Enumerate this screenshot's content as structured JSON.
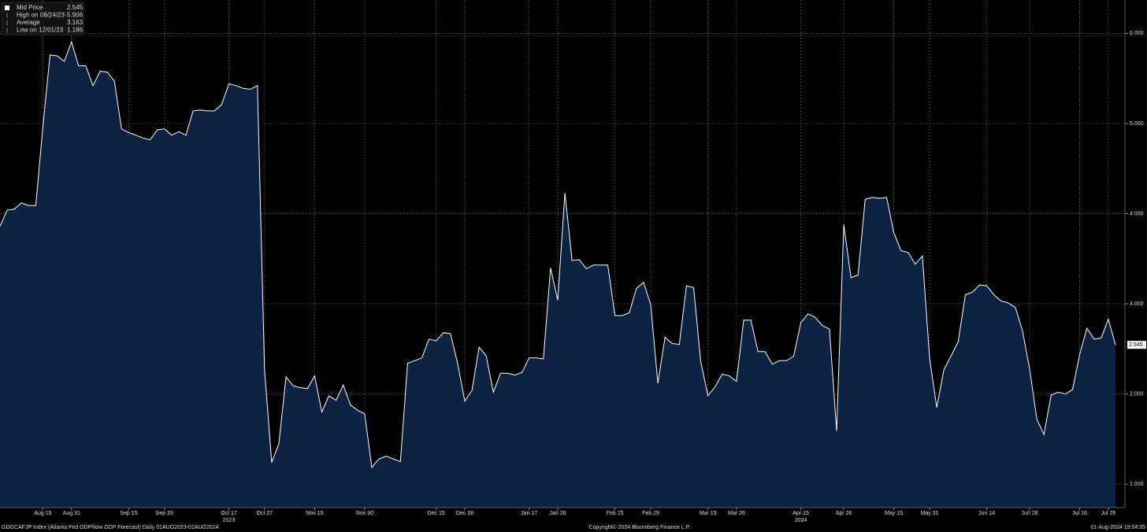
{
  "chart_data": {
    "type": "area",
    "stats": [
      {
        "label": "Mid Price",
        "value": 2.545
      },
      {
        "label": "High on 08/24/23",
        "value": 5.906
      },
      {
        "label": "Average",
        "value": 3.163
      },
      {
        "label": "Low on 12/01/23",
        "value": 1.186
      }
    ],
    "categories": [
      null,
      null,
      null,
      null,
      null,
      null,
      "Aug 15",
      null,
      null,
      null,
      "Aug 31",
      null,
      null,
      null,
      null,
      null,
      null,
      null,
      "Sep 15",
      null,
      null,
      null,
      null,
      "Sep 29",
      null,
      null,
      null,
      null,
      null,
      null,
      null,
      null,
      "Oct 17",
      null,
      null,
      null,
      null,
      "Oct 27",
      null,
      null,
      null,
      null,
      null,
      null,
      "Nov 15",
      null,
      null,
      null,
      null,
      null,
      null,
      "Nov 30",
      null,
      null,
      null,
      null,
      null,
      null,
      null,
      null,
      null,
      "Dec 15",
      null,
      null,
      null,
      "Dec 28",
      null,
      null,
      null,
      null,
      null,
      null,
      null,
      null,
      "Jan 17",
      null,
      null,
      null,
      "Jan 26",
      null,
      null,
      null,
      null,
      null,
      null,
      null,
      "Feb 15",
      null,
      null,
      null,
      null,
      "Feb 29",
      null,
      null,
      null,
      null,
      null,
      null,
      null,
      "Mar 15",
      null,
      null,
      null,
      "Mar 26",
      null,
      null,
      null,
      null,
      null,
      null,
      null,
      null,
      "Apr 15",
      null,
      null,
      null,
      null,
      null,
      "Apr 26",
      null,
      null,
      null,
      null,
      null,
      null,
      "May 15",
      null,
      null,
      null,
      null,
      "May 31",
      null,
      null,
      null,
      null,
      null,
      null,
      null,
      "Jun 14",
      null,
      null,
      null,
      null,
      null,
      "Jun 28",
      null,
      null,
      null,
      null,
      null,
      null,
      "Jul 16",
      null,
      null,
      null,
      "Jul 26",
      null
    ],
    "year_labels": [
      "2023",
      "2024"
    ],
    "series": [
      {
        "name": "Mid Price",
        "color": "#ffffff",
        "fill": "#0b2242",
        "values": [
          3.86,
          4.04,
          4.05,
          4.12,
          4.09,
          4.09,
          4.97,
          5.76,
          5.75,
          5.69,
          5.906,
          5.64,
          5.64,
          5.42,
          5.58,
          5.57,
          5.47,
          4.94,
          4.9,
          4.87,
          4.84,
          4.82,
          4.93,
          4.94,
          4.87,
          4.91,
          4.87,
          5.14,
          5.15,
          5.14,
          5.14,
          5.21,
          5.44,
          5.42,
          5.39,
          5.38,
          5.42,
          2.27,
          1.24,
          1.45,
          2.19,
          2.09,
          2.07,
          2.06,
          2.2,
          1.8,
          1.98,
          1.93,
          2.1,
          1.88,
          1.82,
          1.78,
          1.186,
          1.28,
          1.31,
          1.28,
          1.25,
          2.34,
          2.37,
          2.4,
          2.61,
          2.59,
          2.68,
          2.67,
          2.34,
          1.92,
          2.04,
          2.52,
          2.42,
          2.02,
          2.23,
          2.23,
          2.21,
          2.24,
          2.4,
          2.4,
          2.39,
          3.4,
          3.04,
          4.23,
          3.48,
          3.49,
          3.39,
          3.43,
          3.43,
          3.43,
          2.87,
          2.87,
          2.9,
          3.17,
          3.24,
          2.99,
          2.12,
          2.63,
          2.56,
          2.55,
          3.2,
          3.18,
          2.36,
          1.98,
          2.08,
          2.22,
          2.2,
          2.14,
          2.82,
          2.82,
          2.47,
          2.47,
          2.33,
          2.37,
          2.37,
          2.42,
          2.79,
          2.89,
          2.85,
          2.76,
          2.72,
          1.59,
          3.88,
          3.29,
          3.32,
          4.16,
          4.18,
          4.17,
          4.18,
          3.79,
          3.59,
          3.57,
          3.44,
          3.53,
          2.4,
          1.85,
          2.27,
          2.42,
          2.58,
          3.1,
          3.13,
          3.21,
          3.2,
          3.1,
          3.03,
          3.01,
          2.96,
          2.7,
          2.27,
          1.72,
          1.55,
          1.99,
          2.02,
          2.0,
          2.05,
          2.44,
          2.73,
          2.61,
          2.62,
          2.83,
          2.545
        ]
      }
    ],
    "ylim": [
      0.74,
      6.37
    ],
    "yticks": [
      {
        "value": 1,
        "label": "1.000"
      },
      {
        "value": 2,
        "label": "2.000"
      },
      {
        "value": 3,
        "label": "3.000"
      },
      {
        "value": 4,
        "label": "4.000"
      },
      {
        "value": 5,
        "label": "5.000"
      },
      {
        "value": 6,
        "label": "6.000"
      }
    ],
    "grid": true,
    "legend": "upper left",
    "footer_left": "GDGCAFJP Index (Atlanta Fed GDPNow GDP Forecast)  Daily 01AUG2023-01AUG2024",
    "footer_center": "Copyright© 2024 Bloomberg Finance L.P.",
    "footer_right": "01-Aug-2024 19:04:05"
  }
}
